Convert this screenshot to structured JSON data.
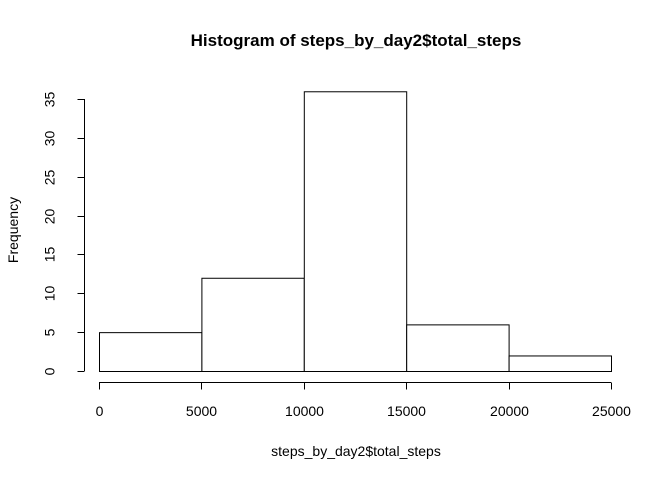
{
  "chart_data": {
    "type": "bar",
    "title": "Histogram of steps_by_day2$total_steps",
    "xlabel": "steps_by_day2$total_steps",
    "ylabel": "Frequency",
    "bins": [
      {
        "from": 0,
        "to": 5000,
        "count": 5
      },
      {
        "from": 5000,
        "to": 10000,
        "count": 12
      },
      {
        "from": 10000,
        "to": 15000,
        "count": 36
      },
      {
        "from": 15000,
        "to": 20000,
        "count": 6
      },
      {
        "from": 20000,
        "to": 25000,
        "count": 2
      }
    ],
    "xlim": [
      0,
      25000
    ],
    "ylim": [
      0,
      35
    ],
    "xticks": [
      0,
      5000,
      10000,
      15000,
      20000,
      25000
    ],
    "yticks": [
      0,
      5,
      10,
      15,
      20,
      25,
      30,
      35
    ],
    "grid": false,
    "colors": {
      "fill": "#ffffff",
      "stroke": "#000000"
    }
  }
}
